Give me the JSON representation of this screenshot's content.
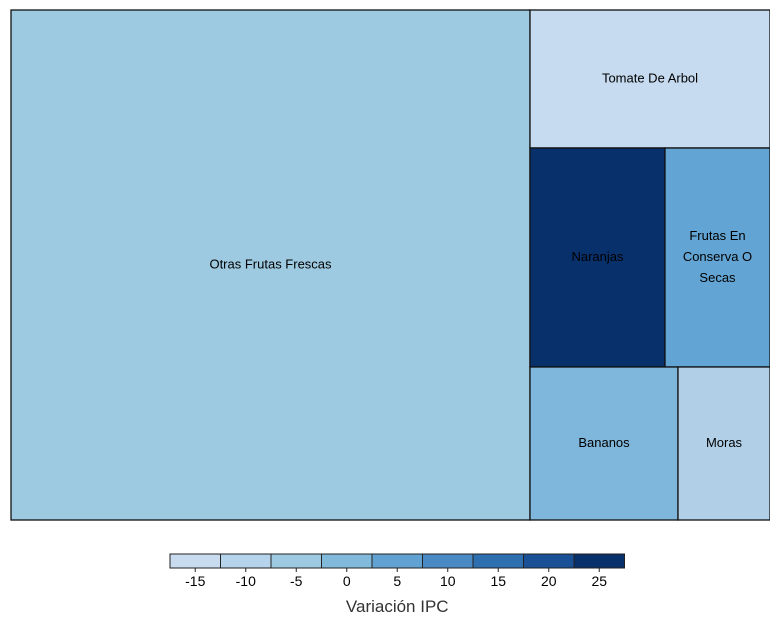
{
  "chart_data": {
    "type": "treemap",
    "tiles": [
      {
        "label": [
          "Otras Frutas Frescas"
        ],
        "value": -7
      },
      {
        "label": [
          "Tomate De Arbol"
        ],
        "value": -14
      },
      {
        "label": [
          "Naranjas"
        ],
        "value": 24
      },
      {
        "label": [
          "Frutas En",
          "Conserva O",
          "Secas"
        ],
        "value": 3
      },
      {
        "label": [
          "Bananos"
        ],
        "value": -3
      },
      {
        "label": [
          "Moras"
        ],
        "value": -11
      }
    ],
    "legend": {
      "title": "Variación IPC",
      "ticks": [
        "-15",
        "-10",
        "-5",
        "0",
        "5",
        "10",
        "15",
        "20",
        "25"
      ],
      "colors": [
        "#c9dbef",
        "#b5d3ea",
        "#9ecae1",
        "#82badb",
        "#62a2d2",
        "#4a8ac4",
        "#2e6fb0",
        "#195096",
        "#08306b"
      ]
    },
    "fill_colors": {
      "Otras Frutas Frescas": "#9ecae1",
      "Tomate De Arbol": "#c6dbef",
      "Naranjas": "#08306b",
      "Frutas En Conserva O Secas": "#62a4d3",
      "Bananos": "#7fb7dc",
      "Moras": "#b1d0e8"
    },
    "border_color": "#111111"
  }
}
